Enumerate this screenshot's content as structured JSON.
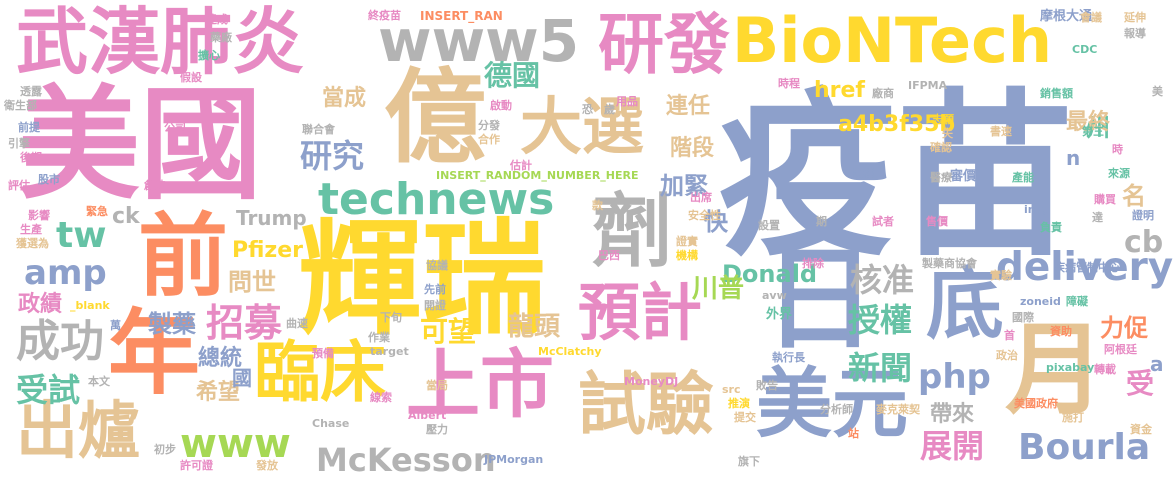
{
  "palette": {
    "pink": "#e78ac3",
    "blue": "#8da0cb",
    "yellow": "#ffd92f",
    "tan": "#e5c494",
    "green": "#66c2a5",
    "orange": "#fc8d62",
    "grey": "#b3b3b3",
    "lime": "#a6d854"
  },
  "words": [
    {
      "text": "疫苗",
      "color": "#8da0cb"
    },
    {
      "text": "美國",
      "color": "#e78ac3"
    },
    {
      "text": "輝瑞",
      "color": "#ffd92f"
    },
    {
      "text": "BioNTech",
      "color": "#ffd92f"
    },
    {
      "text": "億",
      "color": "#e5c494"
    },
    {
      "text": "武漢肺炎",
      "color": "#e78ac3"
    },
    {
      "text": "www5",
      "color": "#b3b3b3"
    },
    {
      "text": "研發",
      "color": "#e78ac3"
    },
    {
      "text": "前",
      "color": "#fc8d62"
    },
    {
      "text": "年",
      "color": "#fc8d62"
    },
    {
      "text": "日",
      "color": "#8da0cb"
    },
    {
      "text": "月",
      "color": "#e5c494"
    },
    {
      "text": "劑",
      "color": "#b3b3b3"
    },
    {
      "text": "大選",
      "color": "#e5c494"
    },
    {
      "text": "上市",
      "color": "#e78ac3"
    },
    {
      "text": "試驗",
      "color": "#e5c494"
    },
    {
      "text": "美元",
      "color": "#8da0cb"
    },
    {
      "text": "technews",
      "color": "#66c2a5"
    },
    {
      "text": "臨床",
      "color": "#ffd92f"
    },
    {
      "text": "出爐",
      "color": "#e5c494"
    },
    {
      "text": "預計",
      "color": "#e78ac3"
    },
    {
      "text": "底",
      "color": "#8da0cb"
    },
    {
      "text": "www",
      "color": "#a6d854"
    },
    {
      "text": "成功",
      "color": "#b3b3b3"
    },
    {
      "text": "McKesson",
      "color": "#b3b3b3"
    },
    {
      "text": "Bourla",
      "color": "#8da0cb"
    },
    {
      "text": "delivery",
      "color": "#8da0cb"
    },
    {
      "text": "cb",
      "color": "#b3b3b3"
    },
    {
      "text": "php",
      "color": "#8da0cb"
    },
    {
      "text": "amp",
      "color": "#8da0cb"
    },
    {
      "text": "tw",
      "color": "#66c2a5"
    },
    {
      "text": "德國",
      "color": "#66c2a5"
    },
    {
      "text": "研究",
      "color": "#8da0cb"
    },
    {
      "text": "招募",
      "color": "#e78ac3"
    },
    {
      "text": "授權",
      "color": "#66c2a5"
    },
    {
      "text": "受試",
      "color": "#66c2a5"
    },
    {
      "text": "新聞",
      "color": "#66c2a5"
    },
    {
      "text": "展開",
      "color": "#e78ac3"
    },
    {
      "text": "核准",
      "color": "#b3b3b3"
    },
    {
      "text": "a4b3f35b",
      "color": "#ffd92f"
    },
    {
      "text": "href",
      "color": "#ffd92f"
    },
    {
      "text": "州",
      "color": "#66c2a5"
    },
    {
      "text": "最終",
      "color": "#e5c494"
    },
    {
      "text": "名",
      "color": "#e5c494"
    },
    {
      "text": "當成",
      "color": "#e5c494"
    },
    {
      "text": "連任",
      "color": "#e5c494"
    },
    {
      "text": "階段",
      "color": "#e5c494"
    },
    {
      "text": "可望",
      "color": "#ffd92f"
    },
    {
      "text": "龍頭",
      "color": "#e5c494"
    },
    {
      "text": "加緊",
      "color": "#8da0cb"
    },
    {
      "text": "快",
      "color": "#8da0cb"
    },
    {
      "text": "Donald",
      "color": "#66c2a5"
    },
    {
      "text": "川普",
      "color": "#a6d854"
    },
    {
      "text": "Trump",
      "color": "#b3b3b3"
    },
    {
      "text": "Pfizer",
      "color": "#ffd92f"
    },
    {
      "text": "問世",
      "color": "#e5c494"
    },
    {
      "text": "製藥",
      "color": "#8da0cb"
    },
    {
      "text": "總統",
      "color": "#8da0cb"
    },
    {
      "text": "希望",
      "color": "#e5c494"
    },
    {
      "text": "國",
      "color": "#8da0cb"
    },
    {
      "text": "政績",
      "color": "#e78ac3"
    },
    {
      "text": "受",
      "color": "#e78ac3"
    },
    {
      "text": "力促",
      "color": "#fc8d62"
    },
    {
      "text": "帶來",
      "color": "#b3b3b3"
    },
    {
      "text": "ck",
      "color": "#b3b3b3"
    },
    {
      "text": "n",
      "color": "#8da0cb"
    },
    {
      "text": "a",
      "color": "#8da0cb"
    },
    {
      "text": "INSERT_RANDOM_NUMBER_HERE",
      "color": "#a6d854"
    },
    {
      "text": "INSERT_RAN",
      "color": "#fc8d62"
    },
    {
      "text": "_blank",
      "color": "#ffd92f"
    },
    {
      "text": "McClatchy",
      "color": "#ffd92f"
    },
    {
      "text": "MoneyDJ",
      "color": "#e78ac3"
    },
    {
      "text": "JPMorgan",
      "color": "#8da0cb"
    },
    {
      "text": "Chase",
      "color": "#b3b3b3"
    },
    {
      "text": "Albert",
      "color": "#e78ac3"
    },
    {
      "text": "target",
      "color": "#b3b3b3"
    },
    {
      "text": "pixabay",
      "color": "#66c2a5"
    },
    {
      "text": "zoneid",
      "color": "#8da0cb"
    },
    {
      "text": "avw",
      "color": "#b3b3b3"
    },
    {
      "text": "img",
      "color": "#8da0cb"
    },
    {
      "text": "src",
      "color": "#e5c494"
    },
    {
      "text": "IFPMA",
      "color": "#b3b3b3"
    },
    {
      "text": "CDC",
      "color": "#66c2a5"
    },
    {
      "text": "製藥商協會",
      "color": "#b3b3b3"
    },
    {
      "text": "疾病管制中心",
      "color": "#8da0cb"
    },
    {
      "text": "麥克萊契",
      "color": "#e5c494"
    },
    {
      "text": "美國政府",
      "color": "#fc8d62"
    },
    {
      "text": "分析師",
      "color": "#b3b3b3"
    },
    {
      "text": "執行長",
      "color": "#8da0cb"
    },
    {
      "text": "摩根大通",
      "color": "#8da0cb"
    },
    {
      "text": "銷售額",
      "color": "#66c2a5"
    },
    {
      "text": "安全性",
      "color": "#e5c494"
    },
    {
      "text": "審價",
      "color": "#8da0cb"
    },
    {
      "text": "產能",
      "color": "#66c2a5"
    },
    {
      "text": "國際",
      "color": "#b3b3b3"
    },
    {
      "text": "資金",
      "color": "#e5c494"
    },
    {
      "text": "證明",
      "color": "#8da0cb"
    },
    {
      "text": "購買",
      "color": "#e78ac3"
    },
    {
      "text": "負責",
      "color": "#66c2a5"
    },
    {
      "text": "來源",
      "color": "#66c2a5"
    },
    {
      "text": "出席",
      "color": "#e78ac3"
    },
    {
      "text": "證實",
      "color": "#e5c494"
    },
    {
      "text": "機構",
      "color": "#ffd92f"
    },
    {
      "text": "巴西",
      "color": "#e78ac3"
    },
    {
      "text": "協議",
      "color": "#b3b3b3"
    },
    {
      "text": "排除",
      "color": "#e78ac3"
    },
    {
      "text": "實驗",
      "color": "#e5c494"
    },
    {
      "text": "外界",
      "color": "#66c2a5"
    },
    {
      "text": "接種",
      "color": "#8da0cb"
    },
    {
      "text": "醫療",
      "color": "#b3b3b3"
    },
    {
      "text": "確認",
      "color": "#e5c494"
    },
    {
      "text": "第三",
      "color": "#66c2a5"
    },
    {
      "text": "時程",
      "color": "#e78ac3"
    },
    {
      "text": "志願",
      "color": "#ffd92f"
    },
    {
      "text": "書速",
      "color": "#e5c494"
    },
    {
      "text": "廠商",
      "color": "#b3b3b3"
    },
    {
      "text": "會議",
      "color": "#e5c494"
    },
    {
      "text": "延伸",
      "color": "#e5c494"
    },
    {
      "text": "報導",
      "color": "#b3b3b3"
    },
    {
      "text": "美",
      "color": "#b3b3b3"
    },
    {
      "text": "時",
      "color": "#e78ac3"
    },
    {
      "text": "失",
      "color": "#e5c494"
    },
    {
      "text": "試者",
      "color": "#e78ac3"
    },
    {
      "text": "售價",
      "color": "#e78ac3"
    },
    {
      "text": "期",
      "color": "#b3b3b3"
    },
    {
      "text": "設置",
      "color": "#b3b3b3"
    },
    {
      "text": "達",
      "color": "#b3b3b3"
    },
    {
      "text": "政治",
      "color": "#e5c494"
    },
    {
      "text": "資助",
      "color": "#fc8d62"
    },
    {
      "text": "轉載",
      "color": "#e78ac3"
    },
    {
      "text": "阿根廷",
      "color": "#e78ac3"
    },
    {
      "text": "障礙",
      "color": "#66c2a5"
    },
    {
      "text": "施打",
      "color": "#e5c494"
    },
    {
      "text": "首",
      "color": "#e78ac3"
    },
    {
      "text": "站",
      "color": "#fc8d62"
    },
    {
      "text": "推演",
      "color": "#ffd92f"
    },
    {
      "text": "提交",
      "color": "#e5c494"
    },
    {
      "text": "旗下",
      "color": "#b3b3b3"
    },
    {
      "text": "敗告",
      "color": "#b3b3b3"
    },
    {
      "text": "壓力",
      "color": "#b3b3b3"
    },
    {
      "text": "線索",
      "color": "#e78ac3"
    },
    {
      "text": "當局",
      "color": "#e5c494"
    },
    {
      "text": "作業",
      "color": "#b3b3b3"
    },
    {
      "text": "預備",
      "color": "#e78ac3"
    },
    {
      "text": "下旬",
      "color": "#b3b3b3"
    },
    {
      "text": "先前",
      "color": "#8da0cb"
    },
    {
      "text": "開證",
      "color": "#b3b3b3"
    },
    {
      "text": "曲速",
      "color": "#b3b3b3"
    },
    {
      "text": "萬",
      "color": "#8da0cb"
    },
    {
      "text": "本文",
      "color": "#b3b3b3"
    },
    {
      "text": "許可證",
      "color": "#e78ac3"
    },
    {
      "text": "發放",
      "color": "#e5c494"
    },
    {
      "text": "初步",
      "color": "#b3b3b3"
    },
    {
      "text": "獲選為",
      "color": "#e5c494"
    },
    {
      "text": "生產",
      "color": "#e78ac3"
    },
    {
      "text": "影響",
      "color": "#e78ac3"
    },
    {
      "text": "緊急",
      "color": "#fc8d62"
    },
    {
      "text": "評估",
      "color": "#e78ac3"
    },
    {
      "text": "股市",
      "color": "#8da0cb"
    },
    {
      "text": "創造",
      "color": "#e78ac3"
    },
    {
      "text": "後期",
      "color": "#e78ac3"
    },
    {
      "text": "引擎",
      "color": "#b3b3b3"
    },
    {
      "text": "公司",
      "color": "#e78ac3"
    },
    {
      "text": "前提",
      "color": "#8da0cb"
    },
    {
      "text": "衛生部",
      "color": "#b3b3b3"
    },
    {
      "text": "透露",
      "color": "#b3b3b3"
    },
    {
      "text": "假設",
      "color": "#e78ac3"
    },
    {
      "text": "擴心",
      "color": "#66c2a5"
    },
    {
      "text": "藥廠",
      "color": "#b3b3b3"
    },
    {
      "text": "達成",
      "color": "#e78ac3"
    },
    {
      "text": "終疫苗",
      "color": "#e78ac3"
    },
    {
      "text": "聯合會",
      "color": "#b3b3b3"
    },
    {
      "text": "啟動",
      "color": "#e78ac3"
    },
    {
      "text": "分發",
      "color": "#b3b3b3"
    },
    {
      "text": "合作",
      "color": "#e5c494"
    },
    {
      "text": "估計",
      "color": "#e78ac3"
    },
    {
      "text": "恐",
      "color": "#b3b3b3"
    },
    {
      "text": "歲",
      "color": "#b3b3b3"
    },
    {
      "text": "用品",
      "color": "#e78ac3"
    },
    {
      "text": "款",
      "color": "#e5c494"
    }
  ]
}
